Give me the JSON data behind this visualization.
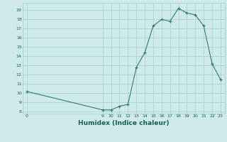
{
  "x": [
    0,
    9,
    10,
    11,
    12,
    13,
    14,
    15,
    16,
    17,
    18,
    19,
    20,
    21,
    22,
    23
  ],
  "y": [
    10.2,
    8.2,
    8.2,
    8.6,
    8.8,
    12.8,
    14.4,
    17.3,
    18.0,
    17.8,
    19.2,
    18.7,
    18.5,
    17.3,
    13.2,
    11.5
  ],
  "xlabel": "Humidex (Indice chaleur)",
  "ylim": [
    7.8,
    19.8
  ],
  "xlim": [
    -0.5,
    23.5
  ],
  "yticks": [
    8,
    9,
    10,
    11,
    12,
    13,
    14,
    15,
    16,
    17,
    18,
    19
  ],
  "xticks": [
    0,
    9,
    10,
    11,
    12,
    13,
    14,
    15,
    16,
    17,
    18,
    19,
    20,
    21,
    22,
    23
  ],
  "line_color": "#2e7d72",
  "bg_color": "#ceeaea",
  "grid_color": "#a8cccc",
  "font_color": "#1a5c55"
}
